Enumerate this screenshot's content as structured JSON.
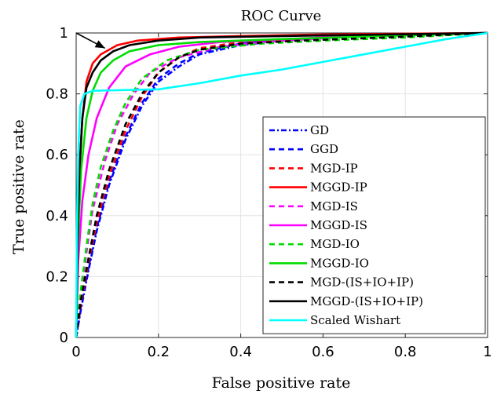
{
  "chart_data": {
    "type": "line",
    "title": "ROC Curve",
    "xlabel": "False positive rate",
    "ylabel": "True positive rate",
    "xlim": [
      0,
      1
    ],
    "ylim": [
      0,
      1
    ],
    "xticks": [
      "0",
      "0.2",
      "0.4",
      "0.6",
      "0.8",
      "1"
    ],
    "yticks": [
      "0",
      "0.2",
      "0.4",
      "0.6",
      "0.8",
      "1"
    ],
    "grid": true,
    "legend_position": "bottom-right",
    "annotation": {
      "type": "arrow",
      "from": [
        0.0,
        1.0
      ],
      "to": [
        0.07,
        0.95
      ]
    },
    "series": [
      {
        "name": "GD",
        "color": "#0000ff",
        "style": "dashdot",
        "points": [
          [
            0,
            0
          ],
          [
            0.01,
            0.08
          ],
          [
            0.03,
            0.22
          ],
          [
            0.05,
            0.35
          ],
          [
            0.08,
            0.5
          ],
          [
            0.12,
            0.65
          ],
          [
            0.16,
            0.76
          ],
          [
            0.2,
            0.84
          ],
          [
            0.25,
            0.89
          ],
          [
            0.3,
            0.93
          ],
          [
            0.4,
            0.96
          ],
          [
            0.5,
            0.975
          ],
          [
            0.7,
            0.99
          ],
          [
            1,
            1
          ]
        ]
      },
      {
        "name": "GGD",
        "color": "#0000ff",
        "style": "dashed",
        "points": [
          [
            0,
            0
          ],
          [
            0.01,
            0.09
          ],
          [
            0.03,
            0.23
          ],
          [
            0.05,
            0.36
          ],
          [
            0.08,
            0.51
          ],
          [
            0.12,
            0.66
          ],
          [
            0.16,
            0.77
          ],
          [
            0.2,
            0.85
          ],
          [
            0.25,
            0.9
          ],
          [
            0.3,
            0.935
          ],
          [
            0.4,
            0.965
          ],
          [
            0.5,
            0.978
          ],
          [
            0.7,
            0.99
          ],
          [
            1,
            1
          ]
        ]
      },
      {
        "name": "MGD-IP",
        "color": "#ff0000",
        "style": "dashed",
        "points": [
          [
            0,
            0
          ],
          [
            0.01,
            0.1
          ],
          [
            0.03,
            0.25
          ],
          [
            0.05,
            0.38
          ],
          [
            0.08,
            0.53
          ],
          [
            0.12,
            0.68
          ],
          [
            0.16,
            0.79
          ],
          [
            0.2,
            0.87
          ],
          [
            0.25,
            0.92
          ],
          [
            0.3,
            0.95
          ],
          [
            0.4,
            0.97
          ],
          [
            0.6,
            0.985
          ],
          [
            1,
            1
          ]
        ]
      },
      {
        "name": "MGGD-IP",
        "color": "#ff0000",
        "style": "solid",
        "points": [
          [
            0,
            0
          ],
          [
            0.003,
            0.3
          ],
          [
            0.008,
            0.55
          ],
          [
            0.015,
            0.72
          ],
          [
            0.025,
            0.84
          ],
          [
            0.04,
            0.9
          ],
          [
            0.06,
            0.93
          ],
          [
            0.1,
            0.96
          ],
          [
            0.15,
            0.975
          ],
          [
            0.25,
            0.985
          ],
          [
            0.4,
            0.99
          ],
          [
            0.6,
            0.995
          ],
          [
            1,
            1
          ]
        ]
      },
      {
        "name": "MGD-IS",
        "color": "#ff00ff",
        "style": "dashed",
        "points": [
          [
            0,
            0
          ],
          [
            0.01,
            0.12
          ],
          [
            0.025,
            0.28
          ],
          [
            0.04,
            0.42
          ],
          [
            0.07,
            0.58
          ],
          [
            0.1,
            0.7
          ],
          [
            0.14,
            0.8
          ],
          [
            0.18,
            0.87
          ],
          [
            0.25,
            0.92
          ],
          [
            0.35,
            0.955
          ],
          [
            0.5,
            0.975
          ],
          [
            0.7,
            0.99
          ],
          [
            1,
            1
          ]
        ]
      },
      {
        "name": "MGGD-IS",
        "color": "#ff00ff",
        "style": "solid",
        "points": [
          [
            0,
            0
          ],
          [
            0.005,
            0.25
          ],
          [
            0.015,
            0.45
          ],
          [
            0.03,
            0.6
          ],
          [
            0.05,
            0.72
          ],
          [
            0.08,
            0.82
          ],
          [
            0.12,
            0.89
          ],
          [
            0.18,
            0.93
          ],
          [
            0.25,
            0.955
          ],
          [
            0.35,
            0.97
          ],
          [
            0.5,
            0.98
          ],
          [
            0.7,
            0.99
          ],
          [
            1,
            1
          ]
        ]
      },
      {
        "name": "MGD-IO",
        "color": "#00dd00",
        "style": "dashed",
        "points": [
          [
            0,
            0
          ],
          [
            0.01,
            0.14
          ],
          [
            0.025,
            0.3
          ],
          [
            0.04,
            0.44
          ],
          [
            0.06,
            0.56
          ],
          [
            0.09,
            0.68
          ],
          [
            0.12,
            0.77
          ],
          [
            0.16,
            0.85
          ],
          [
            0.22,
            0.91
          ],
          [
            0.3,
            0.945
          ],
          [
            0.45,
            0.965
          ],
          [
            0.6,
            0.975
          ],
          [
            0.8,
            0.985
          ],
          [
            1,
            1
          ]
        ]
      },
      {
        "name": "MGGD-IO",
        "color": "#00dd00",
        "style": "solid",
        "points": [
          [
            0,
            0
          ],
          [
            0.004,
            0.3
          ],
          [
            0.012,
            0.55
          ],
          [
            0.025,
            0.72
          ],
          [
            0.04,
            0.81
          ],
          [
            0.06,
            0.87
          ],
          [
            0.09,
            0.91
          ],
          [
            0.13,
            0.94
          ],
          [
            0.2,
            0.96
          ],
          [
            0.3,
            0.97
          ],
          [
            0.5,
            0.98
          ],
          [
            0.7,
            0.988
          ],
          [
            1,
            1
          ]
        ]
      },
      {
        "name": "MGD-(IS+IO+IP)",
        "color": "#000000",
        "style": "dashed",
        "points": [
          [
            0,
            0
          ],
          [
            0.01,
            0.11
          ],
          [
            0.03,
            0.26
          ],
          [
            0.05,
            0.4
          ],
          [
            0.08,
            0.55
          ],
          [
            0.12,
            0.7
          ],
          [
            0.16,
            0.8
          ],
          [
            0.2,
            0.87
          ],
          [
            0.25,
            0.92
          ],
          [
            0.3,
            0.945
          ],
          [
            0.4,
            0.965
          ],
          [
            0.55,
            0.975
          ],
          [
            0.75,
            0.985
          ],
          [
            1,
            1
          ]
        ]
      },
      {
        "name": "MGGD-(IS+IO+IP)",
        "color": "#000000",
        "style": "solid",
        "points": [
          [
            0,
            0
          ],
          [
            0.003,
            0.3
          ],
          [
            0.008,
            0.55
          ],
          [
            0.015,
            0.72
          ],
          [
            0.025,
            0.82
          ],
          [
            0.04,
            0.87
          ],
          [
            0.06,
            0.91
          ],
          [
            0.09,
            0.94
          ],
          [
            0.13,
            0.96
          ],
          [
            0.2,
            0.975
          ],
          [
            0.3,
            0.985
          ],
          [
            0.5,
            0.99
          ],
          [
            1,
            1
          ]
        ]
      },
      {
        "name": "Scaled Wishart",
        "color": "#00ffff",
        "style": "solid",
        "points": [
          [
            0,
            0
          ],
          [
            0.002,
            0.35
          ],
          [
            0.005,
            0.6
          ],
          [
            0.01,
            0.76
          ],
          [
            0.02,
            0.8
          ],
          [
            0.04,
            0.81
          ],
          [
            0.1,
            0.812
          ],
          [
            0.2,
            0.815
          ],
          [
            0.3,
            0.835
          ],
          [
            0.4,
            0.86
          ],
          [
            0.5,
            0.88
          ],
          [
            0.6,
            0.905
          ],
          [
            0.7,
            0.93
          ],
          [
            0.8,
            0.955
          ],
          [
            0.9,
            0.98
          ],
          [
            1,
            1
          ]
        ]
      }
    ]
  }
}
